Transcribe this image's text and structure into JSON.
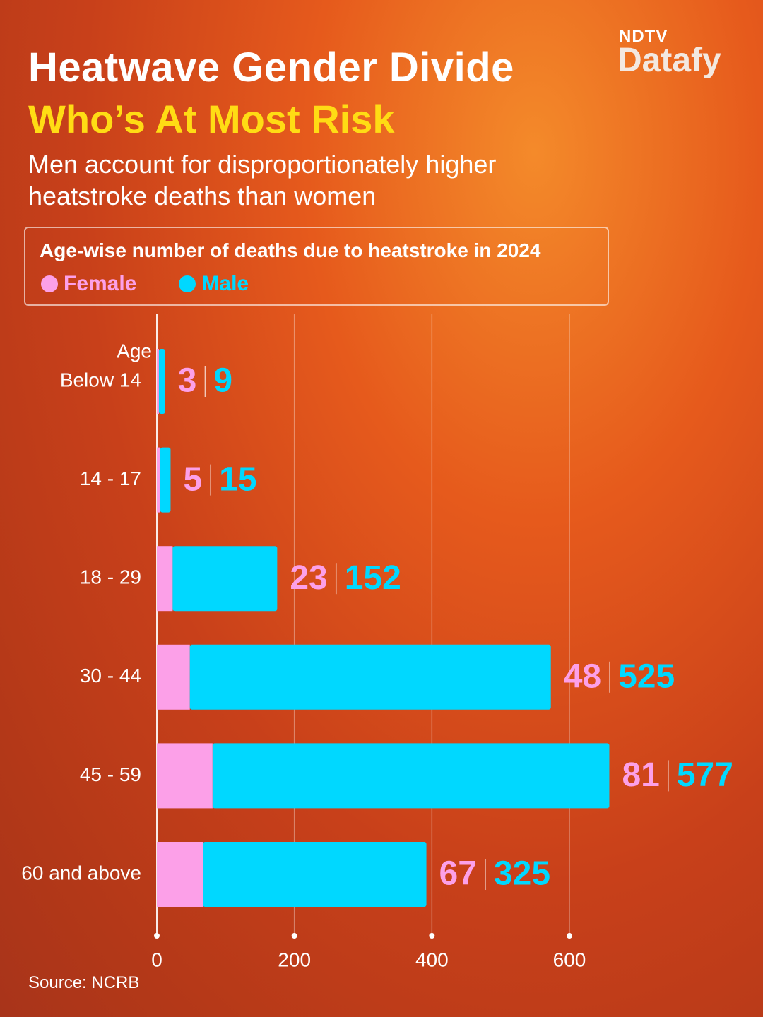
{
  "logo": {
    "brand": "NDTV",
    "product": "Datafy"
  },
  "header": {
    "title": "Heatwave Gender Divide",
    "subtitle": "Who’s At Most Risk",
    "description": "Men account for disproportionately higher heatstroke deaths than women"
  },
  "chart_data": {
    "type": "bar",
    "stacked": true,
    "title": "Age-wise number of deaths due to heatstroke in 2024",
    "y_label": "Age",
    "categories": [
      "Below 14",
      "14 - 17",
      "18 - 29",
      "30 - 44",
      "45 - 59",
      "60 and above"
    ],
    "series": [
      {
        "name": "Female",
        "color": "#fca0e8",
        "values": [
          3,
          5,
          23,
          48,
          81,
          67
        ]
      },
      {
        "name": "Male",
        "color": "#00d8ff",
        "values": [
          9,
          15,
          152,
          525,
          577,
          325
        ]
      }
    ],
    "xlim": [
      0,
      600
    ],
    "xticks": [
      0,
      200,
      400,
      600
    ],
    "grid": true
  },
  "source": "Source: NCRB"
}
